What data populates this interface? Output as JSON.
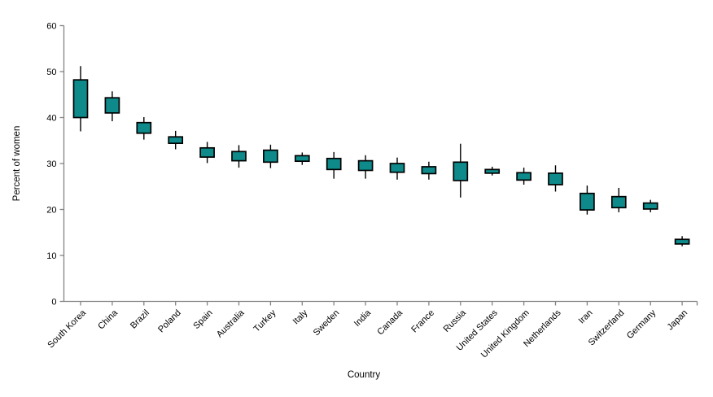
{
  "chart_data": {
    "type": "boxplot",
    "title": "",
    "xlabel": "Country",
    "ylabel": "Percent of women",
    "ylim": [
      0,
      60
    ],
    "yticks": [
      0,
      10,
      20,
      30,
      40,
      50,
      60
    ],
    "grid": false,
    "legend": "none",
    "orientation": "vertical",
    "colors": {
      "box_fill": "#0e8a8a",
      "box_border": "#000000",
      "whisker": "#000000",
      "axis": "#848484",
      "text": "#000000",
      "background": "#ffffff"
    },
    "categories": [
      "South Korea",
      "China",
      "Brazil",
      "Poland",
      "Spain",
      "Australia",
      "Turkey",
      "Italy",
      "Sweden",
      "India",
      "Canada",
      "France",
      "Russia",
      "United States",
      "United Kingdom",
      "Netherlands",
      "Iran",
      "Switzerland",
      "Germany",
      "Japan"
    ],
    "series": [
      {
        "name": "South Korea",
        "whisker_low": 37.0,
        "q1": 40.0,
        "q3": 48.2,
        "whisker_high": 51.2
      },
      {
        "name": "China",
        "whisker_low": 39.2,
        "q1": 41.0,
        "q3": 44.3,
        "whisker_high": 45.7
      },
      {
        "name": "Brazil",
        "whisker_low": 35.2,
        "q1": 36.6,
        "q3": 38.9,
        "whisker_high": 40.1
      },
      {
        "name": "Poland",
        "whisker_low": 33.1,
        "q1": 34.4,
        "q3": 35.8,
        "whisker_high": 37.1
      },
      {
        "name": "Spain",
        "whisker_low": 30.1,
        "q1": 31.4,
        "q3": 33.4,
        "whisker_high": 34.7
      },
      {
        "name": "Australia",
        "whisker_low": 29.1,
        "q1": 30.6,
        "q3": 32.6,
        "whisker_high": 34.0
      },
      {
        "name": "Turkey",
        "whisker_low": 29.0,
        "q1": 30.3,
        "q3": 32.9,
        "whisker_high": 34.1
      },
      {
        "name": "Italy",
        "whisker_low": 29.7,
        "q1": 30.5,
        "q3": 31.7,
        "whisker_high": 32.4
      },
      {
        "name": "Sweden",
        "whisker_low": 26.7,
        "q1": 28.7,
        "q3": 31.1,
        "whisker_high": 32.5
      },
      {
        "name": "India",
        "whisker_low": 26.7,
        "q1": 28.5,
        "q3": 30.6,
        "whisker_high": 31.8
      },
      {
        "name": "Canada",
        "whisker_low": 26.5,
        "q1": 28.1,
        "q3": 30.0,
        "whisker_high": 31.3
      },
      {
        "name": "France",
        "whisker_low": 26.5,
        "q1": 27.8,
        "q3": 29.3,
        "whisker_high": 30.4
      },
      {
        "name": "Russia",
        "whisker_low": 22.6,
        "q1": 26.3,
        "q3": 30.3,
        "whisker_high": 34.3
      },
      {
        "name": "United States",
        "whisker_low": 27.4,
        "q1": 27.9,
        "q3": 28.7,
        "whisker_high": 29.3
      },
      {
        "name": "United Kingdom",
        "whisker_low": 25.4,
        "q1": 26.4,
        "q3": 28.0,
        "whisker_high": 29.1
      },
      {
        "name": "Netherlands",
        "whisker_low": 23.9,
        "q1": 25.4,
        "q3": 27.9,
        "whisker_high": 29.6
      },
      {
        "name": "Iran",
        "whisker_low": 18.9,
        "q1": 19.9,
        "q3": 23.5,
        "whisker_high": 25.2
      },
      {
        "name": "Switzerland",
        "whisker_low": 19.4,
        "q1": 20.4,
        "q3": 22.8,
        "whisker_high": 24.7
      },
      {
        "name": "Germany",
        "whisker_low": 19.4,
        "q1": 20.1,
        "q3": 21.4,
        "whisker_high": 22.1
      },
      {
        "name": "Japan",
        "whisker_low": 12.0,
        "q1": 12.5,
        "q3": 13.5,
        "whisker_high": 14.2
      }
    ]
  }
}
